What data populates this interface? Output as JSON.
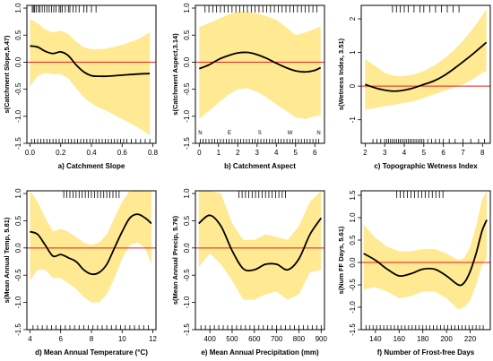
{
  "chart_data": [
    {
      "type": "line",
      "xlabel": "a) Catchment Slope",
      "ylabel": "s(Catchment Slope,5.47)",
      "xlim": [
        -0.02,
        0.82
      ],
      "ylim": [
        -1.5,
        1.05
      ],
      "xticks": [
        0.0,
        0.2,
        0.4,
        0.6,
        0.8
      ],
      "xtick_labels": [
        "0.0",
        "0.2",
        "0.4",
        "0.6",
        "0.8"
      ],
      "yticks": [
        -1.5,
        -1.0,
        -0.5,
        0.0,
        0.5,
        1.0
      ],
      "ytick_labels": [
        "-1.5",
        "-1.0",
        "-0.5",
        "0.0",
        "0.5",
        "1.0"
      ],
      "colors": {
        "band": "#FFE993",
        "line": "#000000",
        "ref": "#E41A1C"
      },
      "x": [
        0.0,
        0.05,
        0.1,
        0.15,
        0.2,
        0.25,
        0.3,
        0.35,
        0.4,
        0.45,
        0.5,
        0.6,
        0.7,
        0.78
      ],
      "fit": [
        0.3,
        0.28,
        0.2,
        0.16,
        0.19,
        0.12,
        -0.05,
        -0.18,
        -0.25,
        -0.26,
        -0.26,
        -0.24,
        -0.22,
        -0.21
      ],
      "upper": [
        0.8,
        0.72,
        0.6,
        0.55,
        0.58,
        0.52,
        0.38,
        0.28,
        0.24,
        0.24,
        0.25,
        0.32,
        0.42,
        0.55
      ],
      "lower": [
        -0.45,
        -0.25,
        -0.2,
        -0.22,
        -0.22,
        -0.3,
        -0.48,
        -0.65,
        -0.76,
        -0.84,
        -0.9,
        -1.05,
        -1.2,
        -1.35
      ],
      "rug_top": [
        0.015,
        0.022,
        0.03,
        0.04,
        0.055,
        0.065,
        0.08,
        0.095,
        0.11,
        0.125,
        0.14,
        0.155,
        0.17,
        0.19,
        0.2,
        0.21,
        0.23,
        0.25,
        0.26,
        0.28,
        0.3,
        0.32,
        0.35,
        0.37,
        0.4,
        0.43
      ],
      "rug_bottom": [
        0.01,
        0.03,
        0.05,
        0.07,
        0.09,
        0.11,
        0.13,
        0.15,
        0.17,
        0.19,
        0.21,
        0.23,
        0.25,
        0.27,
        0.29,
        0.31,
        0.33,
        0.35,
        0.37,
        0.39,
        0.41,
        0.43,
        0.45,
        0.47,
        0.49,
        0.51,
        0.53,
        0.55,
        0.57,
        0.59,
        0.61,
        0.63,
        0.66,
        0.69,
        0.72,
        0.75,
        0.78
      ]
    },
    {
      "type": "line",
      "xlabel": "b) Catchment Aspect",
      "ylabel": "s(Catchment Aspect,3.14)",
      "xlim": [
        -0.2,
        6.5
      ],
      "ylim": [
        -1.5,
        1.05
      ],
      "xticks": [
        0,
        1,
        2,
        3,
        4,
        5,
        6
      ],
      "xtick_labels": [
        "0",
        "1",
        "2",
        "3",
        "4",
        "5",
        "6"
      ],
      "yticks": [
        -1.5,
        -1.0,
        -0.5,
        0.0,
        0.5,
        1.0
      ],
      "ytick_labels": [
        "-1.5",
        "-1.0",
        "-0.5",
        "0.0",
        "0.5",
        "1.0"
      ],
      "annotations": [
        {
          "text": "N",
          "x": 0.05
        },
        {
          "text": "E",
          "x": 1.57
        },
        {
          "text": "S",
          "x": 3.14
        },
        {
          "text": "W",
          "x": 4.71
        },
        {
          "text": "N",
          "x": 6.2
        }
      ],
      "colors": {
        "band": "#FFE993",
        "line": "#000000",
        "ref": "#E41A1C"
      },
      "x": [
        0.0,
        0.5,
        1.0,
        1.5,
        2.0,
        2.5,
        3.0,
        3.5,
        4.0,
        4.5,
        5.0,
        5.5,
        6.0,
        6.3
      ],
      "fit": [
        -0.12,
        -0.05,
        0.05,
        0.12,
        0.17,
        0.18,
        0.14,
        0.07,
        -0.02,
        -0.1,
        -0.16,
        -0.18,
        -0.15,
        -0.1
      ],
      "upper": [
        0.65,
        0.72,
        0.8,
        0.88,
        0.93,
        0.93,
        0.9,
        0.85,
        0.78,
        0.65,
        0.5,
        0.55,
        0.62,
        0.66
      ],
      "lower": [
        -1.05,
        -0.9,
        -0.75,
        -0.6,
        -0.5,
        -0.48,
        -0.55,
        -0.65,
        -0.78,
        -0.9,
        -1.02,
        -1.05,
        -1.0,
        -0.98
      ],
      "rug_top": [
        0.3,
        0.5,
        0.7,
        0.9,
        1.1,
        1.3,
        1.5,
        1.7,
        1.9,
        2.1,
        2.3,
        2.5,
        2.7,
        2.9,
        3.1,
        3.3,
        3.5,
        3.7,
        3.9,
        4.1,
        4.3,
        4.5,
        4.7,
        4.9,
        5.1,
        5.3,
        5.5,
        5.7,
        5.9,
        6.1
      ],
      "rug_bottom": [
        0.05,
        0.2,
        0.35,
        0.5,
        0.65,
        0.8,
        0.95,
        1.1,
        1.25,
        1.4,
        1.55,
        1.7,
        1.85,
        2.0,
        2.15,
        2.3,
        2.45,
        2.6,
        2.75,
        2.9,
        3.05,
        3.2,
        3.35,
        3.5,
        3.65,
        3.8,
        3.95,
        4.1,
        4.25,
        4.4,
        4.55,
        4.7,
        4.85,
        5.0,
        5.15,
        5.3,
        5.45,
        5.6,
        5.75,
        5.9,
        6.05,
        6.2
      ]
    },
    {
      "type": "line",
      "xlabel": "c) Topographic Wetness Index",
      "ylabel": "s(Wetness Index, 3.51)",
      "xlim": [
        1.8,
        8.4
      ],
      "ylim": [
        -1.7,
        2.4
      ],
      "xticks": [
        2,
        3,
        4,
        5,
        6,
        7,
        8
      ],
      "xtick_labels": [
        "2",
        "3",
        "4",
        "5",
        "6",
        "7",
        "8"
      ],
      "yticks": [
        -1,
        0,
        1,
        2
      ],
      "ytick_labels": [
        "-1",
        "0",
        "1",
        "2"
      ],
      "colors": {
        "band": "#FFE993",
        "line": "#000000",
        "ref": "#E41A1C"
      },
      "x": [
        2.0,
        2.5,
        3.0,
        3.5,
        4.0,
        4.5,
        5.0,
        5.5,
        6.0,
        6.5,
        7.0,
        7.5,
        8.0,
        8.2
      ],
      "fit": [
        0.05,
        -0.05,
        -0.12,
        -0.15,
        -0.12,
        -0.05,
        0.05,
        0.15,
        0.3,
        0.5,
        0.72,
        0.95,
        1.2,
        1.3
      ],
      "upper": [
        0.8,
        0.6,
        0.4,
        0.3,
        0.3,
        0.35,
        0.45,
        0.6,
        0.8,
        1.05,
        1.35,
        1.7,
        2.1,
        2.3
      ],
      "lower": [
        -0.7,
        -0.65,
        -0.6,
        -0.55,
        -0.5,
        -0.45,
        -0.35,
        -0.25,
        -0.15,
        -0.05,
        0.05,
        0.2,
        0.4,
        0.45
      ],
      "rug_top": [
        3.4,
        3.6,
        3.8,
        4.0,
        4.2,
        4.5,
        4.8,
        5.0,
        5.3,
        5.6,
        5.9,
        6.2,
        6.5,
        6.8
      ],
      "rug_bottom": [
        2.4,
        2.6,
        2.8,
        3.0,
        3.1,
        3.2,
        3.3,
        3.4,
        3.5,
        3.6,
        3.7,
        3.8,
        3.9,
        4.0,
        4.1,
        4.2,
        4.3,
        4.4,
        4.5,
        4.6,
        4.7,
        4.8,
        4.9,
        5.0,
        5.2,
        5.4,
        5.6,
        5.8,
        6.0,
        6.3,
        6.6,
        7.0,
        7.4,
        7.8,
        8.1
      ]
    },
    {
      "type": "line",
      "xlabel": "d) Mean Annual Temperature (°C)",
      "ylabel": "s(Mean Annual Temp, 5.81)",
      "xlim": [
        3.8,
        12.2
      ],
      "ylim": [
        -1.5,
        1.05
      ],
      "xticks": [
        4,
        6,
        8,
        10,
        12
      ],
      "xtick_labels": [
        "4",
        "6",
        "8",
        "10",
        "12"
      ],
      "yticks": [
        -1.5,
        -1.0,
        -0.5,
        0.0,
        0.5,
        1.0
      ],
      "ytick_labels": [
        "-1.5",
        "-1.0",
        "-0.5",
        "0.0",
        "0.5",
        "1.0"
      ],
      "colors": {
        "band": "#FFE993",
        "line": "#000000",
        "ref": "#E41A1C"
      },
      "x": [
        4.0,
        4.5,
        5.0,
        5.5,
        6.0,
        6.5,
        7.0,
        7.5,
        8.0,
        8.5,
        9.0,
        9.5,
        10.0,
        10.5,
        11.0,
        11.5,
        11.9
      ],
      "fit": [
        0.3,
        0.25,
        0.05,
        -0.15,
        -0.12,
        -0.18,
        -0.25,
        -0.4,
        -0.48,
        -0.45,
        -0.3,
        0.0,
        0.3,
        0.55,
        0.62,
        0.55,
        0.45
      ],
      "upper": [
        1.05,
        0.85,
        0.55,
        0.3,
        0.35,
        0.3,
        0.2,
        0.1,
        0.05,
        0.1,
        0.25,
        0.55,
        0.85,
        1.05,
        1.05,
        1.05,
        1.05
      ],
      "lower": [
        -0.6,
        -0.4,
        -0.4,
        -0.55,
        -0.55,
        -0.65,
        -0.75,
        -0.9,
        -1.0,
        -1.0,
        -0.85,
        -0.55,
        -0.2,
        0.05,
        0.1,
        0.0,
        -0.3
      ],
      "rug_top": [
        6.2,
        6.4,
        6.6,
        6.8,
        7.0,
        7.2,
        7.4,
        7.6,
        7.8,
        8.0,
        8.2,
        8.4,
        8.6,
        8.8,
        9.0,
        9.2,
        9.4,
        9.6,
        9.8
      ],
      "rug_bottom": [
        4.2,
        4.5,
        4.8,
        5.1,
        5.4,
        5.7,
        6.0,
        6.3,
        6.6,
        6.9,
        7.2,
        7.5,
        7.8,
        8.1,
        8.4,
        8.7,
        9.0,
        9.3,
        9.6,
        9.9,
        10.2,
        10.5,
        10.8,
        11.1,
        11.4,
        11.7
      ]
    },
    {
      "type": "line",
      "xlabel": "e) Mean Annual Precipitation (mm)",
      "ylabel": "s(Mean Annual Precip, 5.76)",
      "xlim": [
        335,
        915
      ],
      "ylim": [
        -1.5,
        1.05
      ],
      "xticks": [
        400,
        500,
        600,
        700,
        800,
        900
      ],
      "xtick_labels": [
        "400",
        "500",
        "600",
        "700",
        "800",
        "900"
      ],
      "yticks": [
        -1.5,
        -1.0,
        -0.5,
        0.0,
        0.5,
        1.0
      ],
      "ytick_labels": [
        "-1.5",
        "-1.0",
        "-0.5",
        "0.0",
        "0.5",
        "1.0"
      ],
      "colors": {
        "band": "#FFE993",
        "line": "#000000",
        "ref": "#E41A1C"
      },
      "x": [
        350,
        400,
        450,
        500,
        550,
        600,
        650,
        700,
        750,
        800,
        850,
        900
      ],
      "fit": [
        0.45,
        0.6,
        0.4,
        -0.05,
        -0.38,
        -0.4,
        -0.3,
        -0.3,
        -0.4,
        -0.2,
        0.25,
        0.55
      ],
      "upper": [
        1.05,
        1.05,
        1.0,
        0.45,
        0.15,
        0.15,
        0.25,
        0.2,
        0.15,
        0.4,
        0.85,
        1.05
      ],
      "lower": [
        -0.35,
        -0.1,
        -0.3,
        -0.6,
        -0.95,
        -0.95,
        -0.85,
        -0.8,
        -0.95,
        -0.85,
        -0.45,
        -0.4
      ],
      "rug_top": [
        530,
        545,
        560,
        575,
        590,
        605,
        620,
        635,
        650,
        665,
        680,
        695,
        710,
        725,
        740
      ],
      "rug_bottom": [
        360,
        380,
        400,
        420,
        440,
        460,
        480,
        500,
        520,
        540,
        560,
        580,
        600,
        620,
        640,
        660,
        680,
        700,
        720,
        740,
        760,
        780,
        800,
        820,
        840,
        860,
        880,
        900
      ]
    },
    {
      "type": "line",
      "xlabel": "f) Number of Frost-free Days",
      "ylabel": "s(Num FF Days, 5.61)",
      "xlim": [
        128,
        237
      ],
      "ylim": [
        -1.5,
        1.6
      ],
      "xticks": [
        140,
        160,
        180,
        200,
        220
      ],
      "xtick_labels": [
        "140",
        "160",
        "180",
        "200",
        "220"
      ],
      "yticks": [
        -1.5,
        -1.0,
        -0.5,
        0.0,
        0.5,
        1.0,
        1.5
      ],
      "ytick_labels": [
        "-1.5",
        "-1.0",
        "-0.5",
        "0.0",
        "0.5",
        "1.0",
        "1.5"
      ],
      "colors": {
        "band": "#FFE993",
        "line": "#000000",
        "ref": "#E41A1C"
      },
      "x": [
        130,
        140,
        150,
        160,
        170,
        180,
        190,
        200,
        210,
        215,
        220,
        225,
        230,
        234
      ],
      "fit": [
        0.2,
        0.05,
        -0.15,
        -0.3,
        -0.25,
        -0.15,
        -0.15,
        -0.3,
        -0.5,
        -0.45,
        -0.2,
        0.2,
        0.7,
        0.95
      ],
      "upper": [
        0.85,
        0.55,
        0.35,
        0.25,
        0.25,
        0.3,
        0.3,
        0.2,
        0.05,
        0.1,
        0.35,
        0.8,
        1.4,
        1.6
      ],
      "lower": [
        -0.6,
        -0.55,
        -0.65,
        -0.8,
        -0.75,
        -0.65,
        -0.65,
        -0.8,
        -1.05,
        -1.0,
        -0.85,
        -0.5,
        -0.05,
        0.1
      ],
      "rug_top": [
        158,
        161,
        164,
        167,
        170,
        173,
        176,
        179,
        182,
        185,
        188,
        191,
        194,
        197
      ],
      "rug_bottom": [
        132,
        135,
        138,
        141,
        144,
        147,
        150,
        153,
        156,
        159,
        162,
        165,
        168,
        171,
        174,
        177,
        180,
        183,
        186,
        189,
        192,
        195,
        198,
        201,
        204,
        207,
        210,
        213,
        216,
        219,
        222,
        225,
        228,
        231
      ]
    }
  ]
}
